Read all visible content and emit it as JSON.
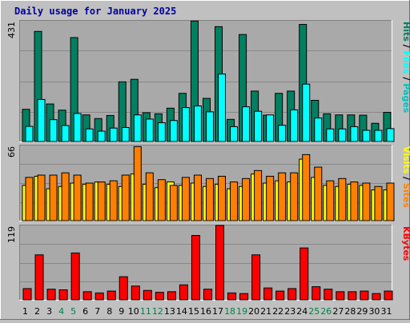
{
  "chart_data": {
    "type": "bar",
    "title": "Daily usage for January 2025",
    "days": [
      "1",
      "2",
      "3",
      "4",
      "5",
      "6",
      "7",
      "8",
      "9",
      "10",
      "11",
      "12",
      "13",
      "14",
      "15",
      "16",
      "17",
      "18",
      "19",
      "20",
      "21",
      "22",
      "23",
      "24",
      "25",
      "26",
      "27",
      "28",
      "29",
      "30",
      "31"
    ],
    "weekend_days": [
      "4",
      "5",
      "11",
      "12",
      "18",
      "19",
      "25",
      "26"
    ],
    "panels": [
      {
        "id": "hits-files-pages",
        "ymax_label": "431",
        "ymax": 431,
        "legend": [
          "Hits",
          "Files",
          "Pages"
        ],
        "series": [
          {
            "name": "Hits",
            "color": "#008060",
            "values": [
              115,
              393,
              134,
              112,
              371,
              95,
              82,
              93,
              213,
              222,
              103,
              99,
              119,
              172,
              430,
              154,
              410,
              79,
              382,
              180,
              94,
              172,
              180,
              418,
              147,
              99,
              95,
              95,
              94,
              65,
              104
            ]
          },
          {
            "name": "Files",
            "color": "#00ffff",
            "values": [
              54,
              150,
              78,
              57,
              100,
              45,
              37,
              48,
              50,
              95,
              80,
              67,
              75,
              121,
              127,
              106,
              241,
              53,
              124,
              108,
              95,
              58,
              113,
              205,
              84,
              45,
              45,
              53,
              40,
              40,
              46
            ]
          },
          {
            "name": "Pages",
            "color": "#00c0c0",
            "values": [
              0,
              0,
              0,
              0,
              0,
              0,
              0,
              0,
              0,
              0,
              0,
              0,
              0,
              0,
              0,
              0,
              0,
              0,
              0,
              0,
              0,
              0,
              0,
              0,
              0,
              0,
              0,
              0,
              0,
              0,
              0
            ]
          }
        ]
      },
      {
        "id": "visits-sites",
        "ymax_label": "66",
        "ymax": 66,
        "legend": [
          "Visits",
          "Sites"
        ],
        "series": [
          {
            "name": "Visits",
            "color": "#ffff00",
            "values": [
              31,
              39,
              28,
              30,
              33,
              32,
              34,
              32,
              30,
              41,
              32,
              29,
              34,
              31,
              33,
              30,
              32,
              28,
              30,
              41,
              33,
              35,
              34,
              54,
              38,
              31,
              30,
              32,
              31,
              27,
              27
            ]
          },
          {
            "name": "Sites",
            "color": "#ff8000",
            "values": [
              38,
              40,
              40,
              42,
              40,
              33,
              34,
              35,
              40,
              65,
              42,
              36,
              31,
              38,
              40,
              37,
              39,
              34,
              37,
              44,
              39,
              42,
              42,
              58,
              47,
              35,
              37,
              34,
              33,
              30,
              33
            ]
          }
        ]
      },
      {
        "id": "kbytes",
        "ymax_label": "119",
        "ymax": 119,
        "legend": [
          "KBytes"
        ],
        "series": [
          {
            "name": "KBytes",
            "color": "#ff0000",
            "values": [
              18,
              72,
              17,
              16,
              75,
              13,
              11,
              14,
              37,
              22,
              15,
              12,
              13,
              24,
              103,
              17,
              119,
              11,
              10,
              72,
              19,
              14,
              18,
              83,
              21,
              17,
              13,
              13,
              14,
              10,
              14
            ]
          }
        ]
      }
    ],
    "colors": {
      "background": "#c0c0c0",
      "plot_bg": "#a9a9a9",
      "grid": "#888888",
      "title": "#0000a0",
      "weekend_label": "#00804a",
      "weekday_label": "#000000"
    }
  }
}
